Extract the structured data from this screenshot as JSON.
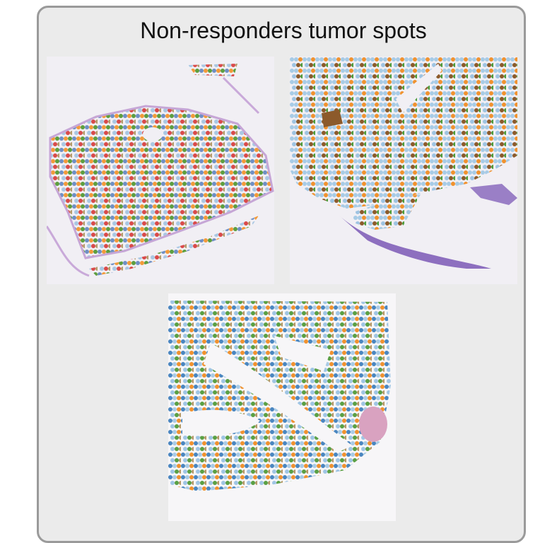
{
  "title": "Non-responders tumor spots"
}
